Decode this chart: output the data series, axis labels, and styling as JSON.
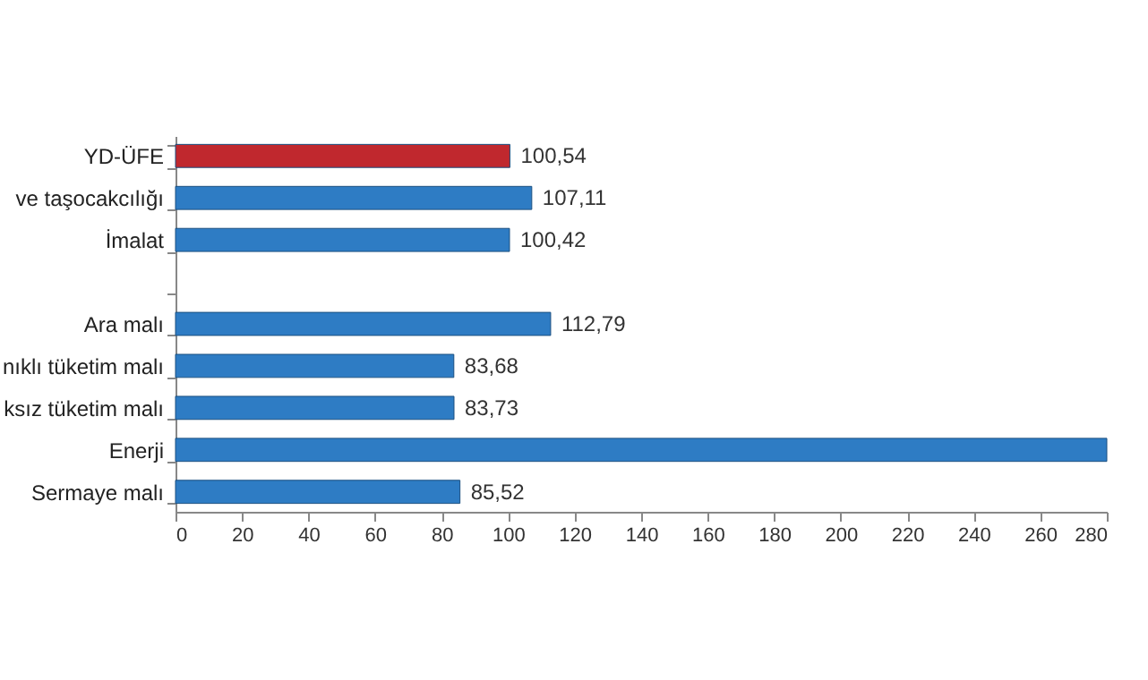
{
  "chart_data": {
    "type": "bar",
    "orientation": "horizontal",
    "categories": [
      "YD-ÜFE",
      "ve taşocakcılığı",
      "İmalat",
      null,
      "Ara malı",
      "nıklı tüketim malı",
      "ksız tüketim malı",
      "Enerji",
      "Sermaye malı"
    ],
    "values": [
      100.54,
      107.11,
      100.42,
      null,
      112.79,
      83.68,
      83.73,
      280,
      85.52
    ],
    "value_labels": [
      "100,54",
      "107,11",
      "100,42",
      null,
      "112,79",
      "83,68",
      "83,73",
      null,
      "85,52"
    ],
    "colors": [
      "#c0282e",
      "#2e7cc4",
      "#2e7cc4",
      "#2e7cc4",
      "#2e7cc4",
      "#2e7cc4",
      "#2e7cc4",
      "#2e7cc4",
      "#2e7cc4"
    ],
    "xlim": [
      0,
      280
    ],
    "xticks": [
      0,
      20,
      40,
      60,
      80,
      100,
      120,
      140,
      160,
      180,
      200,
      220,
      240,
      260,
      280
    ],
    "grid": false
  }
}
